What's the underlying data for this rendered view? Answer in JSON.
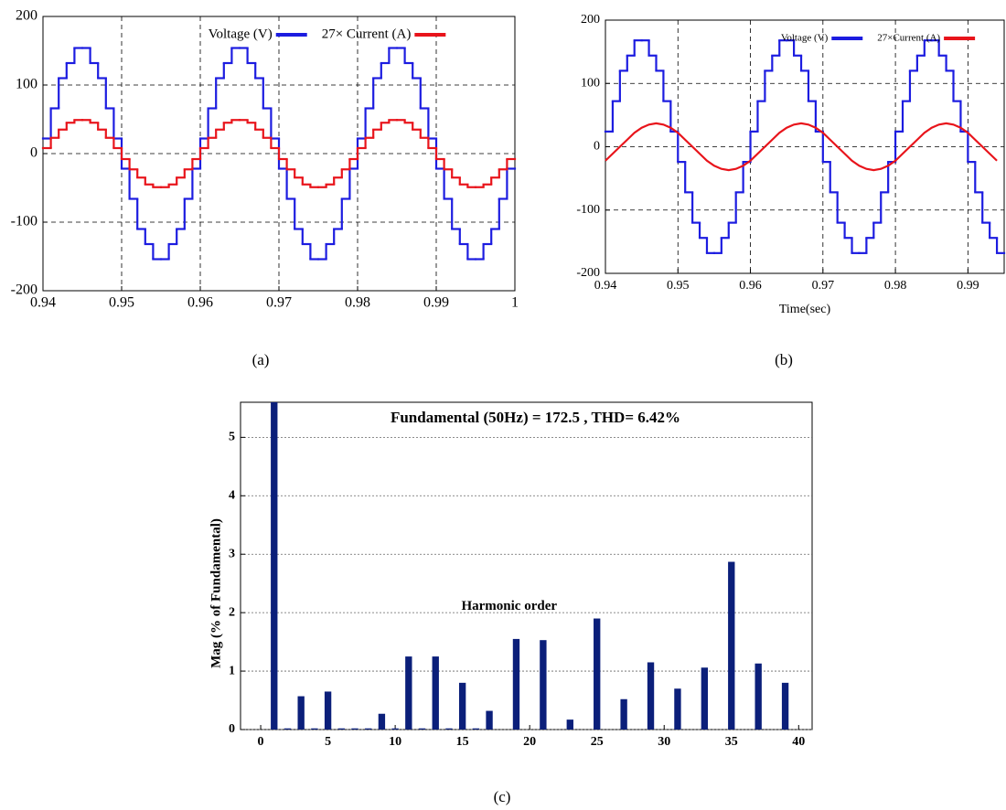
{
  "chart_data": [
    {
      "type": "line",
      "caption": "(a)",
      "x": [
        0.94,
        0.941,
        0.942,
        0.943,
        0.944,
        0.945,
        0.946,
        0.947,
        0.948,
        0.949,
        0.95,
        0.951,
        0.952,
        0.953,
        0.954,
        0.955,
        0.956,
        0.957,
        0.958,
        0.959,
        0.96,
        0.961,
        0.962,
        0.963,
        0.964,
        0.965,
        0.966,
        0.967,
        0.968,
        0.969,
        0.97,
        0.971,
        0.972,
        0.973,
        0.974,
        0.975,
        0.976,
        0.977,
        0.978,
        0.979,
        0.98,
        0.981,
        0.982,
        0.983,
        0.984,
        0.985,
        0.986,
        0.987,
        0.988,
        0.989,
        0.99,
        0.991,
        0.992,
        0.993,
        0.994,
        0.995,
        0.996,
        0.997,
        0.998,
        0.999
      ],
      "series": [
        {
          "name": "Voltage (V)",
          "color": "#1c1ce0",
          "step": true,
          "values": [
            22,
            66,
            110,
            132,
            154,
            154,
            132,
            110,
            66,
            22,
            -22,
            -66,
            -110,
            -132,
            -154,
            -154,
            -132,
            -110,
            -66,
            -22,
            22,
            66,
            110,
            132,
            154,
            154,
            132,
            110,
            66,
            22,
            -22,
            -66,
            -110,
            -132,
            -154,
            -154,
            -132,
            -110,
            -66,
            -22,
            22,
            66,
            110,
            132,
            154,
            154,
            132,
            110,
            66,
            22,
            -22,
            -66,
            -110,
            -132,
            -154,
            -154,
            -132,
            -110,
            -66,
            -22
          ]
        },
        {
          "name": "27× Current (A)",
          "color": "#e8141b",
          "step": true,
          "values": [
            8,
            23,
            35,
            45,
            49,
            49,
            45,
            35,
            23,
            8,
            -8,
            -23,
            -35,
            -45,
            -49,
            -49,
            -45,
            -35,
            -23,
            -8,
            8,
            23,
            35,
            45,
            49,
            49,
            45,
            35,
            23,
            8,
            -8,
            -23,
            -35,
            -45,
            -49,
            -49,
            -45,
            -35,
            -23,
            -8,
            8,
            23,
            35,
            45,
            49,
            49,
            45,
            35,
            23,
            8,
            -8,
            -23,
            -35,
            -45,
            -49,
            -49,
            -45,
            -35,
            -23,
            -8
          ]
        }
      ],
      "xlim": [
        0.94,
        1
      ],
      "xticks": [
        0.94,
        0.95,
        0.96,
        0.97,
        0.98,
        0.99,
        1
      ],
      "ylim": [
        -200,
        200
      ],
      "yticks": [
        -200,
        -100,
        0,
        100,
        200
      ],
      "grid": true
    },
    {
      "type": "line",
      "caption": "(b)",
      "xlabel": "Time(sec)",
      "x": [
        0.94,
        0.941,
        0.942,
        0.943,
        0.944,
        0.945,
        0.946,
        0.947,
        0.948,
        0.949,
        0.95,
        0.951,
        0.952,
        0.953,
        0.954,
        0.955,
        0.956,
        0.957,
        0.958,
        0.959,
        0.96,
        0.961,
        0.962,
        0.963,
        0.964,
        0.965,
        0.966,
        0.967,
        0.968,
        0.969,
        0.97,
        0.971,
        0.972,
        0.973,
        0.974,
        0.975,
        0.976,
        0.977,
        0.978,
        0.979,
        0.98,
        0.981,
        0.982,
        0.983,
        0.984,
        0.985,
        0.986,
        0.987,
        0.988,
        0.989,
        0.99,
        0.991,
        0.992,
        0.993,
        0.994
      ],
      "series": [
        {
          "name": "Voltage (V)",
          "color": "#1c1ce0",
          "step": true,
          "values": [
            24,
            72,
            120,
            144,
            168,
            168,
            144,
            120,
            72,
            24,
            -24,
            -72,
            -120,
            -144,
            -168,
            -168,
            -144,
            -120,
            -72,
            -24,
            24,
            72,
            120,
            144,
            168,
            168,
            144,
            120,
            72,
            24,
            -24,
            -72,
            -120,
            -144,
            -168,
            -168,
            -144,
            -120,
            -72,
            -24,
            24,
            72,
            120,
            144,
            168,
            168,
            144,
            120,
            72,
            24,
            -24,
            -72,
            -120,
            -144,
            -168
          ]
        },
        {
          "name": "27×Current (A)",
          "color": "#e8141b",
          "step": false,
          "values": [
            -22,
            -11,
            0,
            11,
            22,
            30,
            35,
            37,
            35,
            30,
            22,
            11,
            0,
            -11,
            -22,
            -30,
            -35,
            -37,
            -35,
            -30,
            -22,
            -11,
            0,
            11,
            22,
            30,
            35,
            37,
            35,
            30,
            22,
            11,
            0,
            -11,
            -22,
            -30,
            -35,
            -37,
            -35,
            -30,
            -22,
            -11,
            0,
            11,
            22,
            30,
            35,
            37,
            35,
            30,
            22,
            11,
            0,
            -11,
            -22
          ]
        }
      ],
      "xlim": [
        0.94,
        0.995
      ],
      "xticks": [
        0.94,
        0.95,
        0.96,
        0.97,
        0.98,
        0.99
      ],
      "ylim": [
        -200,
        200
      ],
      "yticks": [
        -200,
        -100,
        0,
        100,
        200
      ],
      "grid": true
    },
    {
      "type": "bar",
      "caption": "(c)",
      "title": "Fundamental (50Hz) = 172.5 , THD= 6.42%",
      "ylabel": "Mag (% of Fundamental)",
      "annotation": "Harmonic order",
      "color": "#0b1f7a",
      "x": [
        1,
        2,
        3,
        4,
        5,
        6,
        7,
        8,
        9,
        10,
        11,
        12,
        13,
        14,
        15,
        16,
        17,
        18,
        19,
        20,
        21,
        22,
        23,
        24,
        25,
        26,
        27,
        28,
        29,
        30,
        31,
        32,
        33,
        34,
        35,
        36,
        37,
        38,
        39
      ],
      "values": [
        5.6,
        0.02,
        0.57,
        0.02,
        0.65,
        0.02,
        0.02,
        0.02,
        0.27,
        0.02,
        1.25,
        0.02,
        1.25,
        0.02,
        0.8,
        0.02,
        0.32,
        0,
        1.55,
        0,
        1.53,
        0,
        0.17,
        0,
        1.9,
        0,
        0.52,
        0,
        1.15,
        0,
        0.7,
        0,
        1.06,
        0,
        2.87,
        0,
        1.13,
        0,
        0.8
      ],
      "xlim": [
        -1.5,
        41
      ],
      "xticks": [
        0,
        5,
        10,
        15,
        20,
        25,
        30,
        35,
        40
      ],
      "ylim": [
        0,
        5.6
      ],
      "yticks": [
        0,
        1,
        2,
        3,
        4,
        5
      ],
      "grid": true
    }
  ]
}
